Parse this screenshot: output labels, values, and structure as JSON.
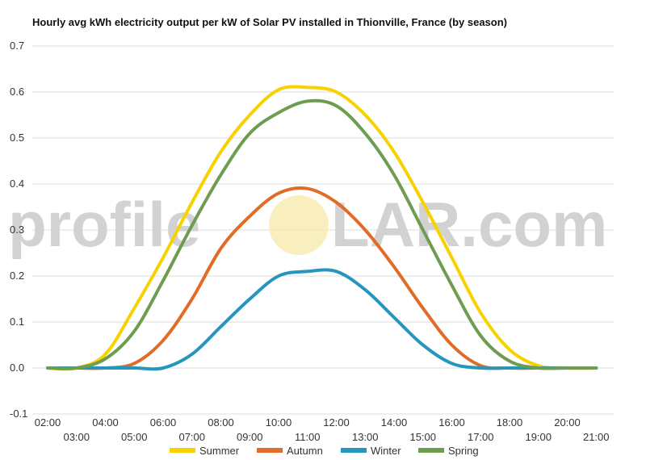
{
  "watermark": {
    "left": "profile",
    "right": "LAR.com",
    "sun_color": "#f7e9a8"
  },
  "chart_data": {
    "type": "line",
    "title": "Hourly avg kWh electricity output per kW of Solar PV installed in Thionville, France (by season)",
    "xlabel": "",
    "ylabel": "",
    "ylim": [
      -0.1,
      0.7
    ],
    "yticks": [
      "-0.1",
      "0.0",
      "0.1",
      "0.2",
      "0.3",
      "0.4",
      "0.5",
      "0.6",
      "0.7"
    ],
    "grid": true,
    "legend_position": "bottom",
    "categories": [
      "02:00",
      "03:00",
      "04:00",
      "05:00",
      "06:00",
      "07:00",
      "08:00",
      "09:00",
      "10:00",
      "11:00",
      "12:00",
      "13:00",
      "14:00",
      "15:00",
      "16:00",
      "17:00",
      "18:00",
      "19:00",
      "20:00",
      "21:00"
    ],
    "series": [
      {
        "name": "Summer",
        "color": "#f7d200",
        "values": [
          0.0,
          0.0,
          0.03,
          0.13,
          0.24,
          0.36,
          0.47,
          0.55,
          0.605,
          0.61,
          0.6,
          0.55,
          0.47,
          0.36,
          0.24,
          0.12,
          0.04,
          0.005,
          0.0,
          0.0
        ]
      },
      {
        "name": "Autumn",
        "color": "#e06c28",
        "values": [
          0.0,
          0.0,
          0.0,
          0.01,
          0.06,
          0.15,
          0.26,
          0.33,
          0.38,
          0.39,
          0.36,
          0.3,
          0.22,
          0.13,
          0.05,
          0.005,
          0.0,
          0.0,
          0.0,
          0.0
        ]
      },
      {
        "name": "Winter",
        "color": "#2596be",
        "values": [
          0.0,
          0.0,
          0.0,
          0.0,
          0.0,
          0.03,
          0.09,
          0.15,
          0.2,
          0.21,
          0.21,
          0.17,
          0.11,
          0.05,
          0.01,
          0.0,
          0.0,
          0.0,
          0.0,
          0.0
        ]
      },
      {
        "name": "Spring",
        "color": "#6e9c50",
        "values": [
          0.0,
          0.0,
          0.02,
          0.08,
          0.19,
          0.31,
          0.42,
          0.51,
          0.555,
          0.58,
          0.57,
          0.51,
          0.42,
          0.3,
          0.18,
          0.07,
          0.015,
          0.0,
          0.0,
          0.0
        ]
      }
    ]
  }
}
